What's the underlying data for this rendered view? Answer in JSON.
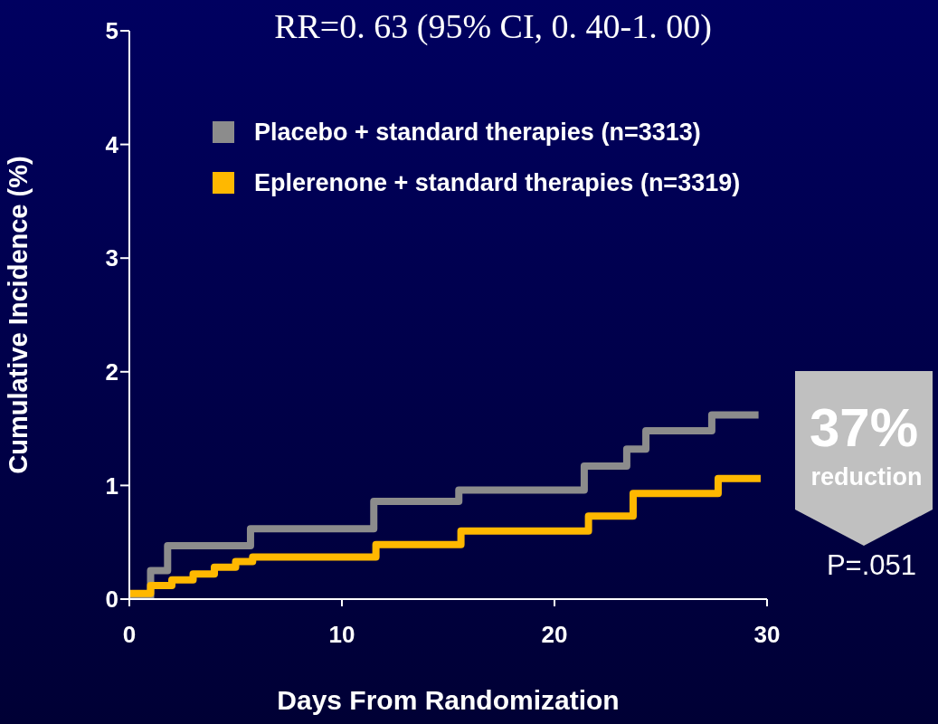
{
  "chart_data": {
    "type": "step",
    "title": "RR=0. 63 (95% CI, 0. 40-1. 00)",
    "xlabel": "Days From Randomization",
    "ylabel": "Cumulative Incidence (%)",
    "xlim": [
      0,
      30
    ],
    "xticks": [
      0,
      10,
      20,
      30
    ],
    "ylim": [
      0,
      5
    ],
    "yticks": [
      0,
      1,
      2,
      3,
      4,
      5
    ],
    "grid": false,
    "legend": "top",
    "series": [
      {
        "name": "Placebo + standard therapies (n=3313)",
        "color": "#8c8c8c",
        "x": [
          0,
          1.0,
          1.8,
          5.7,
          11.5,
          15.5,
          21.4,
          23.4,
          24.3,
          27.4,
          29.6
        ],
        "values": [
          0,
          0.25,
          0.47,
          0.62,
          0.86,
          0.96,
          1.17,
          1.32,
          1.48,
          1.62,
          1.62
        ]
      },
      {
        "name": "Eplerenone + standard therapies (n=3319)",
        "color": "#ffb800",
        "x": [
          0,
          1,
          2,
          3,
          4,
          5,
          5.8,
          11.6,
          15.6,
          21.6,
          23.7,
          27.7,
          29.7
        ],
        "values": [
          0.05,
          0.12,
          0.17,
          0.22,
          0.28,
          0.33,
          0.37,
          0.48,
          0.6,
          0.73,
          0.93,
          1.06,
          1.06
        ]
      }
    ],
    "annotations": [
      "37%",
      "reduction",
      "P=.051"
    ]
  }
}
